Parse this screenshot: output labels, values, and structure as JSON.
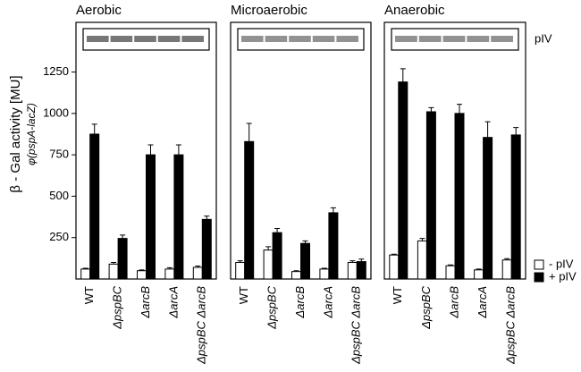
{
  "chart_data": [
    {
      "type": "bar",
      "title": "Aerobic",
      "y_label": "β - Gal activity [MU]",
      "y_sublabel": "φ(pspA-lacZ)",
      "categories": [
        "WT",
        "ΔpspBC",
        "ΔarcB",
        "ΔarcA",
        "ΔpspBC ΔarcB"
      ],
      "series": [
        {
          "color": "#ffffff",
          "values": [
            60,
            90,
            50,
            60,
            70
          ],
          "errors": [
            5,
            10,
            5,
            8,
            8
          ]
        },
        {
          "color": "#000000",
          "values": [
            875,
            245,
            750,
            750,
            360
          ],
          "errors": [
            60,
            20,
            60,
            60,
            20
          ]
        }
      ],
      "ylim": [
        0,
        1550
      ],
      "yticks": [
        250,
        500,
        750,
        1000,
        1250
      ]
    },
    {
      "type": "bar",
      "title": "Microaerobic",
      "categories": [
        "WT",
        "ΔpspBC",
        "ΔarcB",
        "ΔarcA",
        "ΔpspBC ΔarcB"
      ],
      "series": [
        {
          "color": "#ffffff",
          "values": [
            100,
            175,
            45,
            60,
            100
          ],
          "errors": [
            10,
            20,
            5,
            5,
            10
          ]
        },
        {
          "color": "#000000",
          "values": [
            830,
            280,
            215,
            400,
            105
          ],
          "errors": [
            110,
            25,
            15,
            30,
            15
          ]
        }
      ],
      "ylim": [
        0,
        1550
      ]
    },
    {
      "type": "bar",
      "title": "Anaerobic",
      "annotation": "pIV",
      "categories": [
        "WT",
        "ΔpspBC",
        "ΔarcB",
        "ΔarcA",
        "ΔpspBC ΔarcB"
      ],
      "series": [
        {
          "name": "- pIV",
          "color": "#ffffff",
          "values": [
            145,
            230,
            80,
            55,
            115
          ],
          "errors": [
            5,
            15,
            5,
            5,
            8
          ]
        },
        {
          "name": "+ pIV",
          "color": "#000000",
          "values": [
            1190,
            1010,
            1000,
            855,
            870
          ],
          "errors": [
            80,
            25,
            55,
            95,
            45
          ]
        }
      ],
      "ylim": [
        0,
        1550
      ]
    }
  ]
}
